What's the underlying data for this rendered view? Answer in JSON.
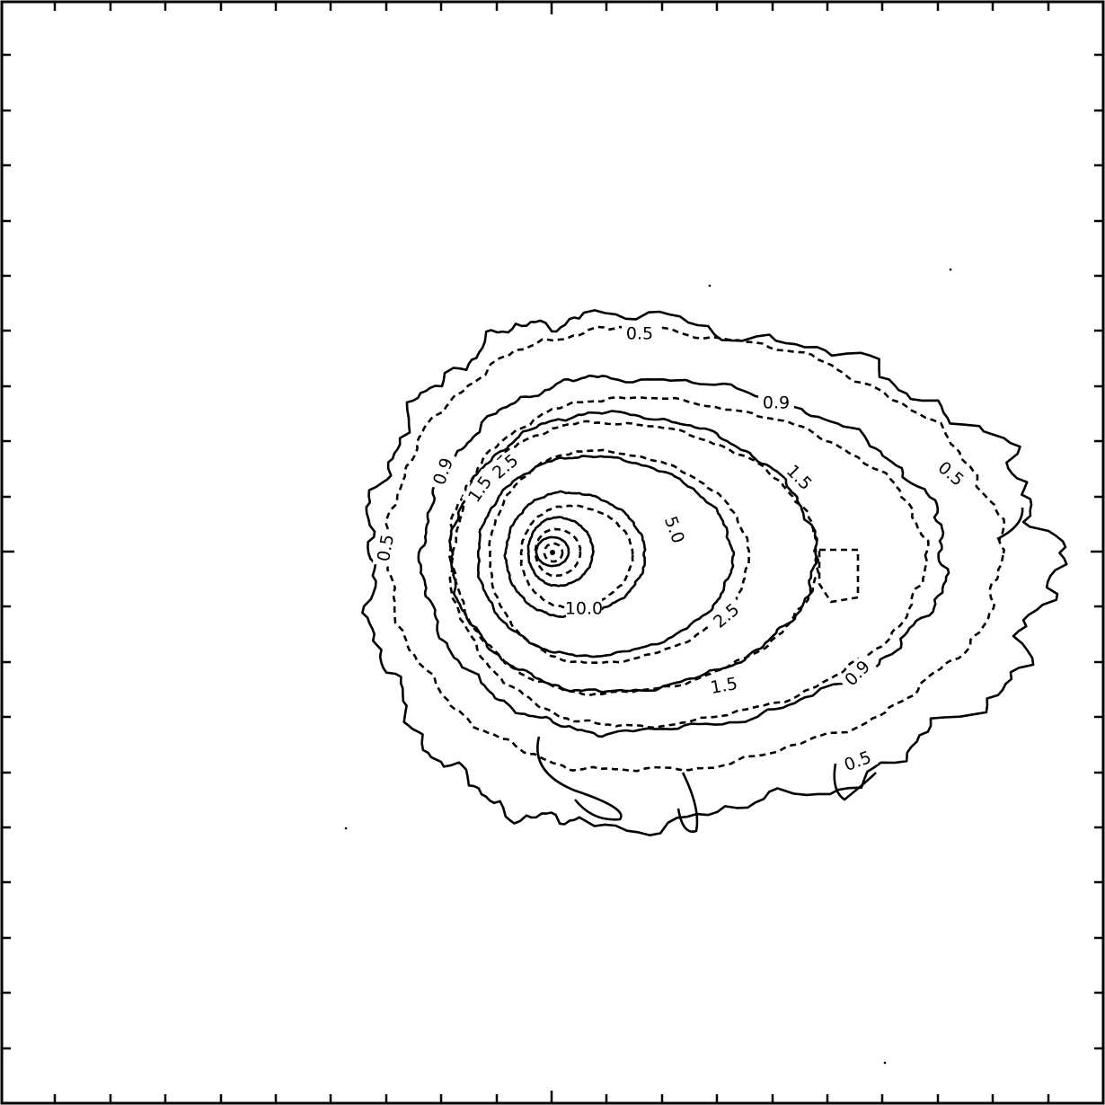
{
  "chart_data": {
    "type": "contour",
    "title": "",
    "xlabel": "",
    "ylabel": "",
    "styles": {
      "solid": "solid line",
      "dashed": "dashed line"
    },
    "contours": [
      {
        "level": 0.5,
        "style": "solid",
        "outer": true
      },
      {
        "level": 0.5,
        "style": "dashed",
        "labels": [
          "0.5",
          "0.5",
          "0.5",
          "0.5"
        ]
      },
      {
        "level": 0.9,
        "style": "solid"
      },
      {
        "level": 0.9,
        "style": "dashed",
        "labels": [
          "0.9",
          "0.9",
          "0.9"
        ]
      },
      {
        "level": 1.5,
        "style": "solid"
      },
      {
        "level": 1.5,
        "style": "dashed",
        "labels": [
          "1.5",
          "1.5",
          "1.5"
        ]
      },
      {
        "level": 2.5,
        "style": "solid"
      },
      {
        "level": 2.5,
        "style": "dashed",
        "labels": [
          "2.5",
          "2.5"
        ]
      },
      {
        "level": 5.0,
        "style": "solid"
      },
      {
        "level": 5.0,
        "style": "dashed",
        "labels": [
          "5.0"
        ]
      },
      {
        "level": 10.0,
        "style": "solid",
        "labels": [
          "10.0"
        ]
      },
      {
        "level": 10.0,
        "style": "dashed"
      }
    ],
    "peak_marker": true,
    "grid": false,
    "legend": "none",
    "tick_labels": false
  }
}
